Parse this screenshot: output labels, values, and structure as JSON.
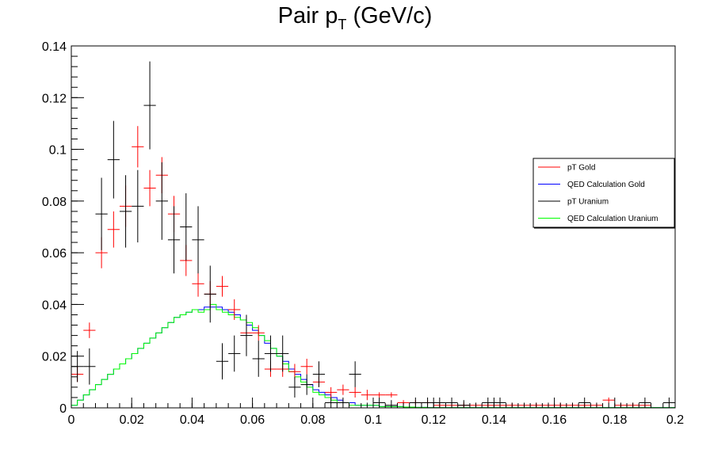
{
  "chart_data": {
    "type": "line",
    "title": {
      "main": "Pair p",
      "sub": "T",
      "tail": " (GeV/c)"
    },
    "xlabel": "",
    "ylabel": "",
    "xlim": [
      0,
      0.2
    ],
    "ylim": [
      0,
      0.14
    ],
    "x_ticks": [
      0,
      0.02,
      0.04,
      0.06,
      0.08,
      0.1,
      0.12,
      0.14,
      0.16,
      0.18,
      0.2
    ],
    "x_tick_labels": [
      "0",
      "0.02",
      "0.04",
      "0.06",
      "0.08",
      "0.1",
      "0.12",
      "0.14",
      "0.16",
      "0.18",
      "0.2"
    ],
    "y_ticks": [
      0,
      0.02,
      0.04,
      0.06,
      0.08,
      0.1,
      0.12,
      0.14
    ],
    "y_tick_labels": [
      "0",
      "0.02",
      "0.04",
      "0.06",
      "0.08",
      "0.1",
      "0.12",
      "0.14"
    ],
    "grid": false,
    "legend_position": "right",
    "series": [
      {
        "name": "pT Gold",
        "kind": "points",
        "color": "#ff0000",
        "xerr": 0.002,
        "points": [
          [
            0.002,
            0.013,
            0.003
          ],
          [
            0.006,
            0.03,
            0.003
          ],
          [
            0.01,
            0.06,
            0.006
          ],
          [
            0.014,
            0.069,
            0.007
          ],
          [
            0.018,
            0.078,
            0.008
          ],
          [
            0.022,
            0.101,
            0.008
          ],
          [
            0.026,
            0.085,
            0.007
          ],
          [
            0.03,
            0.09,
            0.007
          ],
          [
            0.034,
            0.075,
            0.007
          ],
          [
            0.038,
            0.057,
            0.006
          ],
          [
            0.042,
            0.048,
            0.005
          ],
          [
            0.046,
            0.044,
            0.005
          ],
          [
            0.05,
            0.047,
            0.004
          ],
          [
            0.054,
            0.038,
            0.004
          ],
          [
            0.058,
            0.029,
            0.004
          ],
          [
            0.062,
            0.029,
            0.003
          ],
          [
            0.066,
            0.015,
            0.003
          ],
          [
            0.07,
            0.015,
            0.003
          ],
          [
            0.074,
            0.014,
            0.003
          ],
          [
            0.078,
            0.016,
            0.003
          ],
          [
            0.082,
            0.01,
            0.002
          ],
          [
            0.086,
            0.006,
            0.002
          ],
          [
            0.09,
            0.007,
            0.002
          ],
          [
            0.094,
            0.006,
            0.002
          ],
          [
            0.098,
            0.005,
            0.002
          ],
          [
            0.102,
            0.005,
            0.001
          ],
          [
            0.106,
            0.005,
            0.001
          ],
          [
            0.11,
            0.002,
            0.001
          ],
          [
            0.114,
            0.002,
            0.001
          ],
          [
            0.118,
            0.002,
            0.001
          ],
          [
            0.122,
            0.001,
            0.001
          ],
          [
            0.126,
            0.001,
            0.001
          ],
          [
            0.13,
            0.001,
            0.001
          ],
          [
            0.134,
            0.001,
            0.001
          ],
          [
            0.138,
            0.001,
            0.001
          ],
          [
            0.142,
            0.001,
            0.001
          ],
          [
            0.146,
            0.001,
            0.001
          ],
          [
            0.15,
            0.001,
            0.001
          ],
          [
            0.154,
            0.001,
            0.001
          ],
          [
            0.158,
            0.001,
            0.001
          ],
          [
            0.162,
            0.001,
            0.001
          ],
          [
            0.166,
            0.001,
            0.001
          ],
          [
            0.17,
            0.001,
            0.001
          ],
          [
            0.174,
            0.001,
            0.001
          ],
          [
            0.178,
            0.003,
            0.001
          ],
          [
            0.182,
            0.001,
            0.001
          ],
          [
            0.186,
            0.001,
            0.001
          ],
          [
            0.19,
            0.001,
            0.001
          ]
        ]
      },
      {
        "name": "QED Calculation Gold",
        "kind": "step",
        "color": "#0000ff",
        "binwidth": 0.002,
        "edges_start": 0,
        "values": [
          0.001,
          0.003,
          0.005,
          0.007,
          0.009,
          0.011,
          0.013,
          0.015,
          0.017,
          0.019,
          0.021,
          0.023,
          0.025,
          0.027,
          0.029,
          0.031,
          0.033,
          0.035,
          0.036,
          0.037,
          0.038,
          0.038,
          0.039,
          0.039,
          0.039,
          0.038,
          0.037,
          0.036,
          0.034,
          0.032,
          0.03,
          0.028,
          0.025,
          0.023,
          0.02,
          0.018,
          0.015,
          0.013,
          0.011,
          0.009,
          0.007,
          0.006,
          0.005,
          0.004,
          0.003,
          0.002,
          0.002,
          0.001,
          0.001,
          0.001,
          0.001,
          0.0005,
          0.0005,
          0.0005,
          0.0005,
          0.0003,
          0.0003,
          0.0002,
          0.0002,
          0.0001,
          0.0001,
          0.0001,
          0.0001,
          0.0001,
          0.0001,
          0.0001,
          0.0001,
          0.0001,
          0.0001,
          0.0001,
          0.0001,
          0.0001,
          0.0001,
          0.0001,
          0.0001,
          0.0001,
          0.0001,
          0.0001,
          0.0001,
          0.0001,
          0.0001,
          0.0001,
          0.0001,
          0.0001,
          0.0001,
          0.0001,
          0.0001,
          0.0001,
          0.0001,
          0.0001,
          0.0001,
          0.0001,
          0.0001,
          0.0001,
          0.0001,
          0.0001,
          0.0001,
          0.0001,
          0.0001,
          0.0001
        ]
      },
      {
        "name": "pT Uranium",
        "kind": "points",
        "color": "#000000",
        "xerr": 0.002,
        "points": [
          [
            0.002,
            0.016,
            0.006
          ],
          [
            0.006,
            0.016,
            0.007
          ],
          [
            0.01,
            0.075,
            0.014
          ],
          [
            0.014,
            0.096,
            0.015
          ],
          [
            0.018,
            0.076,
            0.014
          ],
          [
            0.022,
            0.078,
            0.014
          ],
          [
            0.026,
            0.117,
            0.017
          ],
          [
            0.03,
            0.08,
            0.015
          ],
          [
            0.034,
            0.065,
            0.013
          ],
          [
            0.038,
            0.07,
            0.013
          ],
          [
            0.042,
            0.065,
            0.013
          ],
          [
            0.046,
            0.044,
            0.011
          ],
          [
            0.05,
            0.018,
            0.007
          ],
          [
            0.054,
            0.021,
            0.007
          ],
          [
            0.058,
            0.028,
            0.008
          ],
          [
            0.062,
            0.019,
            0.007
          ],
          [
            0.066,
            0.021,
            0.007
          ],
          [
            0.07,
            0.021,
            0.007
          ],
          [
            0.074,
            0.008,
            0.004
          ],
          [
            0.078,
            0.009,
            0.004
          ],
          [
            0.082,
            0.013,
            0.005
          ],
          [
            0.086,
            0.002,
            0.002
          ],
          [
            0.09,
            0.002,
            0.002
          ],
          [
            0.094,
            0.013,
            0.005
          ],
          [
            0.098,
            0.0,
            0.002
          ],
          [
            0.102,
            0.002,
            0.002
          ],
          [
            0.106,
            0.001,
            0.002
          ],
          [
            0.11,
            0.0,
            0.002
          ],
          [
            0.114,
            0.002,
            0.002
          ],
          [
            0.118,
            0.002,
            0.002
          ],
          [
            0.122,
            0.002,
            0.002
          ],
          [
            0.126,
            0.002,
            0.002
          ],
          [
            0.13,
            0.001,
            0.002
          ],
          [
            0.134,
            0.0,
            0.002
          ],
          [
            0.138,
            0.002,
            0.002
          ],
          [
            0.142,
            0.002,
            0.002
          ],
          [
            0.146,
            0.0,
            0.002
          ],
          [
            0.15,
            0.0,
            0.002
          ],
          [
            0.154,
            0.0,
            0.002
          ],
          [
            0.158,
            0.0,
            0.002
          ],
          [
            0.162,
            0.0,
            0.002
          ],
          [
            0.166,
            0.0,
            0.002
          ],
          [
            0.17,
            0.002,
            0.002
          ],
          [
            0.174,
            0.0,
            0.002
          ],
          [
            0.178,
            0.0,
            0.002
          ],
          [
            0.182,
            0.0,
            0.002
          ],
          [
            0.186,
            0.0,
            0.002
          ],
          [
            0.19,
            0.002,
            0.002
          ],
          [
            0.198,
            0.002,
            0.002
          ]
        ]
      },
      {
        "name": "QED Calculation Uranium",
        "kind": "step",
        "color": "#00ff00",
        "binwidth": 0.002,
        "edges_start": 0,
        "values": [
          0.001,
          0.003,
          0.005,
          0.007,
          0.009,
          0.011,
          0.013,
          0.015,
          0.017,
          0.019,
          0.021,
          0.023,
          0.025,
          0.027,
          0.029,
          0.031,
          0.033,
          0.035,
          0.036,
          0.037,
          0.038,
          0.037,
          0.038,
          0.04,
          0.038,
          0.037,
          0.036,
          0.035,
          0.034,
          0.033,
          0.031,
          0.028,
          0.026,
          0.023,
          0.02,
          0.017,
          0.014,
          0.012,
          0.01,
          0.008,
          0.006,
          0.005,
          0.004,
          0.003,
          0.002,
          0.002,
          0.001,
          0.001,
          0.001,
          0.001,
          0.001,
          0.0005,
          0.0005,
          0.0005,
          0.0005,
          0.0003,
          0.0003,
          0.0002,
          0.0002,
          0.0001,
          0.0001,
          0.0001,
          0.0001,
          0.0001,
          0.0001,
          0.0001,
          0.0001,
          0.0001,
          0.0001,
          0.0001,
          0.0001,
          0.0001,
          0.0001,
          0.0001,
          0.0001,
          0.0001,
          0.0001,
          0.0001,
          0.0001,
          0.0001,
          0.0001,
          0.0001,
          0.0001,
          0.0001,
          0.0001,
          0.0001,
          0.0001,
          0.0001,
          0.0001,
          0.0001,
          0.0001,
          0.0001,
          0.0001,
          0.0001,
          0.0001,
          0.0001,
          0.0001,
          0.0001,
          0.0001,
          0.0001
        ]
      }
    ]
  }
}
